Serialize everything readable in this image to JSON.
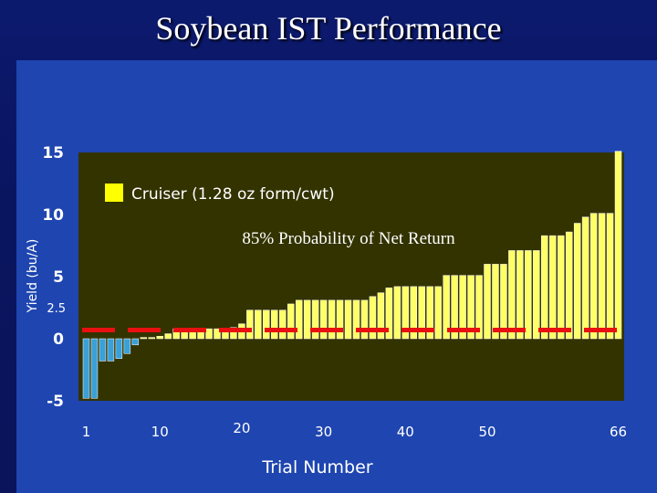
{
  "slide": {
    "title": "Soybean IST Performance"
  },
  "chart_data": {
    "type": "bar",
    "title": "Soybean IST Performance",
    "subtitle": "85% Probability of Net Return",
    "xlabel": "Trial Number",
    "ylabel": "Yield (bu/A)",
    "ylim": [
      -5,
      15
    ],
    "yticks": [
      {
        "value": -5,
        "label": "-5"
      },
      {
        "value": 0,
        "label": "0"
      },
      {
        "value": 2.5,
        "label": "2.5"
      },
      {
        "value": 5,
        "label": "5"
      },
      {
        "value": 10,
        "label": "10"
      },
      {
        "value": 15,
        "label": "15"
      }
    ],
    "xticks": [
      {
        "value": 1,
        "label": "1"
      },
      {
        "value": 10,
        "label": "10"
      },
      {
        "value": 20,
        "label": "20"
      },
      {
        "value": 30,
        "label": "30"
      },
      {
        "value": 40,
        "label": "40"
      },
      {
        "value": 50,
        "label": "50"
      },
      {
        "value": 66,
        "label": "66"
      }
    ],
    "reference_line": {
      "value": 0.7,
      "style": "dashed",
      "color": "#e81010"
    },
    "legend": {
      "position": "top-left",
      "entries": [
        {
          "label": "Cruiser (1.28 oz form/cwt)",
          "color": "#ffff00"
        }
      ]
    },
    "grid": false,
    "colors": {
      "plot_bg": "#333300",
      "positive": "#ffff66",
      "negative": "#3aa0d8",
      "axis_text": "#ffffff"
    },
    "series": [
      {
        "name": "Cruiser (1.28 oz form/cwt)",
        "x": [
          1,
          2,
          3,
          4,
          5,
          6,
          7,
          8,
          9,
          10,
          11,
          12,
          13,
          14,
          15,
          16,
          17,
          18,
          19,
          20,
          21,
          22,
          23,
          24,
          25,
          26,
          27,
          28,
          29,
          30,
          31,
          32,
          33,
          34,
          35,
          36,
          37,
          38,
          39,
          40,
          41,
          42,
          43,
          44,
          45,
          46,
          47,
          48,
          49,
          50,
          51,
          52,
          53,
          54,
          55,
          56,
          57,
          58,
          59,
          60,
          61,
          62,
          63,
          64,
          65,
          66
        ],
        "values": [
          -4.8,
          -4.8,
          -1.8,
          -1.8,
          -1.6,
          -1.2,
          -0.5,
          0.1,
          0.1,
          0.2,
          0.4,
          0.8,
          0.8,
          0.8,
          0.8,
          0.8,
          0.8,
          0.8,
          0.9,
          1.2,
          2.3,
          2.3,
          2.3,
          2.3,
          2.3,
          2.8,
          3.1,
          3.1,
          3.1,
          3.1,
          3.1,
          3.1,
          3.1,
          3.1,
          3.1,
          3.4,
          3.7,
          4.1,
          4.2,
          4.2,
          4.2,
          4.2,
          4.2,
          4.2,
          5.1,
          5.1,
          5.1,
          5.1,
          5.1,
          6.0,
          6.0,
          6.0,
          7.1,
          7.1,
          7.1,
          7.1,
          8.3,
          8.3,
          8.3,
          8.6,
          9.3,
          9.8,
          10.1,
          10.1,
          10.1,
          15.1
        ]
      }
    ]
  }
}
